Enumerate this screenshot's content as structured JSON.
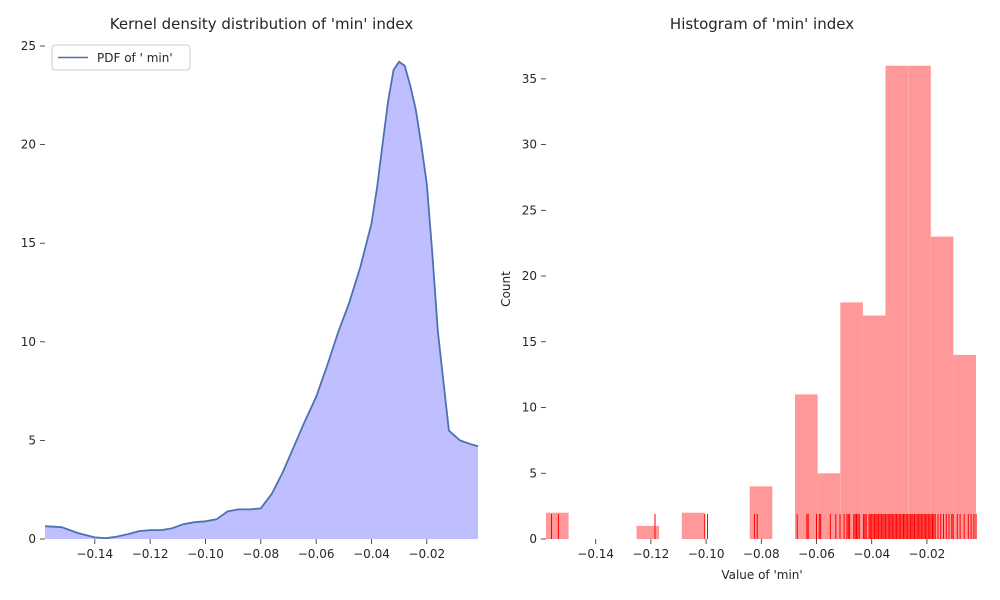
{
  "chart_data": [
    {
      "type": "area",
      "title": "Kernel density distribution of 'min' index",
      "xlabel": "",
      "ylabel": "",
      "xlim": [
        -0.158,
        -0.0015
      ],
      "ylim": [
        0,
        25
      ],
      "xticks": [
        -0.14,
        -0.12,
        -0.1,
        -0.08,
        -0.06,
        -0.04,
        -0.02
      ],
      "xtick_labels": [
        "−0.14",
        "−0.12",
        "−0.10",
        "−0.08",
        "−0.06",
        "−0.04",
        "−0.02"
      ],
      "yticks": [
        0,
        5,
        10,
        15,
        20,
        25
      ],
      "ytick_labels": [
        "0",
        "5",
        "10",
        "15",
        "20",
        "25"
      ],
      "legend": {
        "placement": "top-left",
        "entries": [
          "PDF of ' min'"
        ]
      },
      "grid": false,
      "colors": {
        "line": "#4c72b0",
        "fill": "#bfbfff"
      },
      "series": [
        {
          "name": "PDF of ' min'",
          "x": [
            -0.158,
            -0.152,
            -0.146,
            -0.14,
            -0.136,
            -0.132,
            -0.128,
            -0.124,
            -0.12,
            -0.116,
            -0.112,
            -0.108,
            -0.104,
            -0.1,
            -0.096,
            -0.092,
            -0.088,
            -0.084,
            -0.08,
            -0.076,
            -0.072,
            -0.068,
            -0.064,
            -0.06,
            -0.056,
            -0.052,
            -0.048,
            -0.044,
            -0.04,
            -0.038,
            -0.036,
            -0.034,
            -0.032,
            -0.03,
            -0.028,
            -0.026,
            -0.024,
            -0.022,
            -0.02,
            -0.018,
            -0.016,
            -0.012,
            -0.008,
            -0.004,
            -0.0015
          ],
          "y": [
            0.65,
            0.6,
            0.3,
            0.08,
            0.04,
            0.12,
            0.25,
            0.4,
            0.45,
            0.45,
            0.55,
            0.75,
            0.85,
            0.9,
            1.0,
            1.4,
            1.5,
            1.5,
            1.55,
            2.3,
            3.4,
            4.7,
            6.0,
            7.2,
            8.8,
            10.5,
            12.0,
            13.8,
            16.0,
            17.8,
            20.0,
            22.2,
            23.8,
            24.2,
            24.0,
            23.0,
            21.8,
            20.0,
            18.0,
            14.5,
            10.5,
            5.5,
            5.0,
            4.8,
            4.7
          ]
        }
      ]
    },
    {
      "type": "bar",
      "title": "Histogram of 'min' index",
      "xlabel": "Value of 'min'",
      "ylabel": "Count",
      "xlim": [
        -0.158,
        -0.0015
      ],
      "ylim": [
        0,
        37.5
      ],
      "xticks": [
        -0.14,
        -0.12,
        -0.1,
        -0.08,
        -0.06,
        -0.04,
        -0.02
      ],
      "xtick_labels": [
        "−0.14",
        "−0.12",
        "−0.10",
        "−0.08",
        "−0.06",
        "−0.04",
        "−0.02"
      ],
      "yticks": [
        0,
        5,
        10,
        15,
        20,
        25,
        30,
        35
      ],
      "ytick_labels": [
        "0",
        "5",
        "10",
        "15",
        "20",
        "25",
        "30",
        "35"
      ],
      "grid": false,
      "colors": {
        "bar": "#ff9999",
        "rug": "#ff0000"
      },
      "bin_edges": [
        -0.158,
        -0.1498,
        -0.1416,
        -0.1334,
        -0.1252,
        -0.117,
        -0.1088,
        -0.1006,
        -0.0924,
        -0.0842,
        -0.076,
        -0.0678,
        -0.0596,
        -0.0514,
        -0.0432,
        -0.035,
        -0.0268,
        -0.0186,
        -0.0104,
        -0.0022
      ],
      "counts": [
        2,
        0,
        0,
        0,
        1,
        0,
        2,
        0,
        0,
        4,
        0,
        11,
        5,
        18,
        17,
        36,
        36,
        23,
        14
      ],
      "rug": [
        -0.156,
        -0.1535,
        -0.1185,
        -0.1005,
        -0.0995,
        -0.0995,
        -0.0825,
        -0.0815,
        -0.067,
        -0.0635,
        -0.063,
        -0.06,
        -0.059,
        -0.0585,
        -0.055,
        -0.053,
        -0.0515,
        -0.05,
        -0.049,
        -0.0485,
        -0.048,
        -0.0465,
        -0.046,
        -0.0455,
        -0.045,
        -0.0445,
        -0.043,
        -0.0425,
        -0.042,
        -0.041,
        -0.0405,
        -0.04,
        -0.0395,
        -0.039,
        -0.0385,
        -0.038,
        -0.0375,
        -0.037,
        -0.0365,
        -0.036,
        -0.0355,
        -0.035,
        -0.0345,
        -0.034,
        -0.0335,
        -0.033,
        -0.0325,
        -0.032,
        -0.0315,
        -0.031,
        -0.0305,
        -0.03,
        -0.0295,
        -0.029,
        -0.0285,
        -0.028,
        -0.0275,
        -0.027,
        -0.0265,
        -0.026,
        -0.0255,
        -0.025,
        -0.0245,
        -0.024,
        -0.0235,
        -0.023,
        -0.0225,
        -0.022,
        -0.0215,
        -0.021,
        -0.0205,
        -0.02,
        -0.0195,
        -0.019,
        -0.0185,
        -0.018,
        -0.0175,
        -0.017,
        -0.016,
        -0.015,
        -0.014,
        -0.013,
        -0.012,
        -0.011,
        -0.0105,
        -0.009,
        -0.008,
        -0.0065,
        -0.005,
        -0.004,
        -0.003,
        -0.0022
      ]
    }
  ]
}
